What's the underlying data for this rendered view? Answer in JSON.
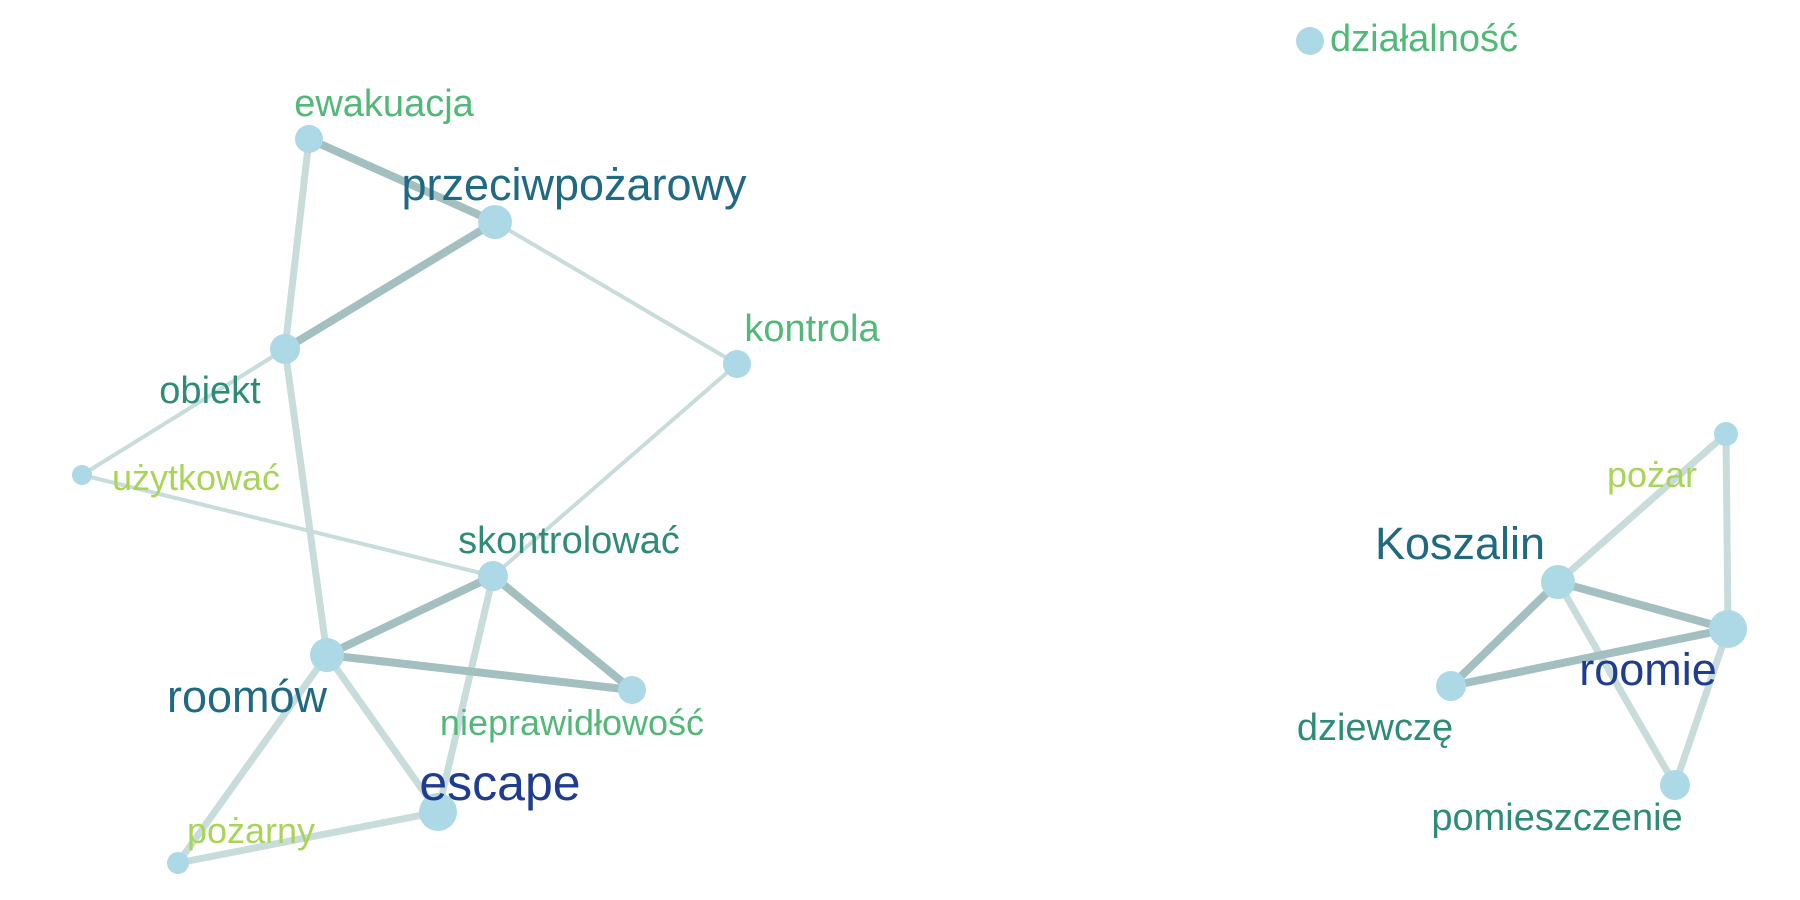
{
  "colors": {
    "node_fill": "#add8e6",
    "edge_light": "#c8dcdc",
    "edge_dark": "#a3bfbf",
    "label_dark_blue": "#1f3d8f",
    "label_teal_blue": "#1f6a82",
    "label_teal": "#2e8b78",
    "label_green": "#52b878",
    "label_lime": "#a8d45a"
  },
  "network": {
    "nodes": [
      {
        "id": "dzialalnosc",
        "label": "działalność",
        "weight": 2,
        "color": "label_green"
      },
      {
        "id": "ewakuacja",
        "label": "ewakuacja",
        "weight": 2,
        "color": "label_green"
      },
      {
        "id": "przeciwpozarowy",
        "label": "przeciwpożarowy",
        "weight": 3,
        "color": "label_teal_blue"
      },
      {
        "id": "kontrola",
        "label": "kontrola",
        "weight": 2,
        "color": "label_green"
      },
      {
        "id": "obiekt",
        "label": "obiekt",
        "weight": 2,
        "color": "label_teal"
      },
      {
        "id": "uzytkowac",
        "label": "użytkować",
        "weight": 1,
        "color": "label_lime"
      },
      {
        "id": "skontrolowac",
        "label": "skontrolować",
        "weight": 2,
        "color": "label_teal"
      },
      {
        "id": "roomow",
        "label": "roomów",
        "weight": 3,
        "color": "label_teal_blue"
      },
      {
        "id": "nieprawidlowosc",
        "label": "nieprawidłowość",
        "weight": 2,
        "color": "label_green"
      },
      {
        "id": "escape",
        "label": "escape",
        "weight": 4,
        "color": "label_dark_blue"
      },
      {
        "id": "pozarny",
        "label": "pożarny",
        "weight": 1,
        "color": "label_lime"
      },
      {
        "id": "pozar",
        "label": "pożar",
        "weight": 1,
        "color": "label_lime"
      },
      {
        "id": "koszalin",
        "label": "Koszalin",
        "weight": 3,
        "color": "label_teal_blue"
      },
      {
        "id": "roomie",
        "label": "roomie",
        "weight": 4,
        "color": "label_dark_blue"
      },
      {
        "id": "dziewcze",
        "label": "dziewczę",
        "weight": 2,
        "color": "label_teal"
      },
      {
        "id": "pomieszczenie",
        "label": "pomieszczenie",
        "weight": 2,
        "color": "label_teal"
      }
    ],
    "edges": [
      {
        "source": "ewakuacja",
        "target": "przeciwpozarowy",
        "strength": "strong"
      },
      {
        "source": "ewakuacja",
        "target": "obiekt",
        "strength": "medium"
      },
      {
        "source": "przeciwpozarowy",
        "target": "obiekt",
        "strength": "strong"
      },
      {
        "source": "przeciwpozarowy",
        "target": "kontrola",
        "strength": "weak"
      },
      {
        "source": "kontrola",
        "target": "skontrolowac",
        "strength": "weak"
      },
      {
        "source": "obiekt",
        "target": "uzytkowac",
        "strength": "weak"
      },
      {
        "source": "obiekt",
        "target": "roomow",
        "strength": "medium"
      },
      {
        "source": "uzytkowac",
        "target": "skontrolowac",
        "strength": "weak"
      },
      {
        "source": "skontrolowac",
        "target": "roomow",
        "strength": "strong"
      },
      {
        "source": "skontrolowac",
        "target": "nieprawidlowosc",
        "strength": "strong"
      },
      {
        "source": "skontrolowac",
        "target": "escape",
        "strength": "medium"
      },
      {
        "source": "roomow",
        "target": "nieprawidlowosc",
        "strength": "strong"
      },
      {
        "source": "roomow",
        "target": "escape",
        "strength": "medium"
      },
      {
        "source": "roomow",
        "target": "pozarny",
        "strength": "medium"
      },
      {
        "source": "escape",
        "target": "pozarny",
        "strength": "medium"
      },
      {
        "source": "pozar",
        "target": "koszalin",
        "strength": "medium"
      },
      {
        "source": "pozar",
        "target": "roomie",
        "strength": "medium"
      },
      {
        "source": "koszalin",
        "target": "roomie",
        "strength": "strong"
      },
      {
        "source": "koszalin",
        "target": "dziewcze",
        "strength": "strong"
      },
      {
        "source": "koszalin",
        "target": "pomieszczenie",
        "strength": "medium"
      },
      {
        "source": "dziewcze",
        "target": "roomie",
        "strength": "strong"
      },
      {
        "source": "roomie",
        "target": "pomieszczenie",
        "strength": "medium"
      }
    ]
  }
}
